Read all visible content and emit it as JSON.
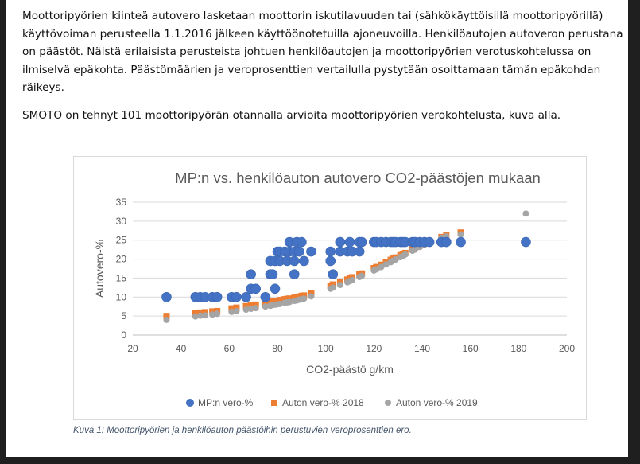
{
  "text": {
    "paragraph1": "Moottoripyörien kiinteä autovero lasketaan moottorin iskutilavuuden tai (sähkökäyttöisillä moottoripyörillä) käyttövoiman perusteella 1.1.2016 jälkeen käyttöönotetuilla ajoneuvoilla. Henkilöautojen autoveron perustana on päästöt. Näistä erilaisista perusteista johtuen henkilöautojen ja moottoripyörien verotuskohtelussa on ilmiselvä epäkohta. Päästömäärien ja veroprosenttien vertailulla pystytään osoittamaan tämän epäkohdan räikeys.",
    "paragraph2": "SMOTO on tehnyt 101 moottoripyörän otannalla arvioita moottoripyörien verokohtelusta, kuva alla.",
    "caption": "Kuva 1: Moottoripyörien ja henkilöauton päästöihin perustuvien veroprosenttien ero."
  },
  "chart_data": {
    "type": "scatter",
    "title": "MP:n vs. henkilöauton autovero CO2-päästöjen mukaan",
    "xlabel": "CO2-päästö g/km",
    "ylabel": "Autovero-%",
    "xlim": [
      20,
      200
    ],
    "ylim": [
      0,
      35
    ],
    "xticks": [
      20,
      40,
      60,
      80,
      100,
      120,
      140,
      160,
      180,
      200
    ],
    "yticks": [
      0,
      5,
      10,
      15,
      20,
      25,
      30,
      35
    ],
    "grid": "horizontal",
    "legend_position": "bottom",
    "series": [
      {
        "name": "MP:n vero-%",
        "marker": "circle",
        "color": "#4472c4",
        "points": [
          [
            34,
            10
          ],
          [
            46,
            10
          ],
          [
            48,
            10
          ],
          [
            50,
            10
          ],
          [
            53,
            10
          ],
          [
            55,
            10
          ],
          [
            61,
            10
          ],
          [
            63,
            10
          ],
          [
            67,
            10
          ],
          [
            69,
            12.2
          ],
          [
            69,
            16
          ],
          [
            71,
            12.2
          ],
          [
            75,
            10
          ],
          [
            77,
            16
          ],
          [
            77,
            19.5
          ],
          [
            78,
            16
          ],
          [
            79,
            12.2
          ],
          [
            79,
            19.5
          ],
          [
            80,
            22
          ],
          [
            81,
            19.5
          ],
          [
            81,
            22
          ],
          [
            83,
            22
          ],
          [
            84,
            19.5
          ],
          [
            85,
            22
          ],
          [
            85,
            24.5
          ],
          [
            87,
            16
          ],
          [
            87,
            19.5
          ],
          [
            87,
            22
          ],
          [
            88,
            24.5
          ],
          [
            89,
            22
          ],
          [
            90,
            24.5
          ],
          [
            91,
            19.5
          ],
          [
            94,
            22
          ],
          [
            102,
            19.5
          ],
          [
            102,
            22
          ],
          [
            103,
            16
          ],
          [
            106,
            22
          ],
          [
            106,
            24.5
          ],
          [
            109,
            22
          ],
          [
            110,
            24.5
          ],
          [
            111,
            22
          ],
          [
            114,
            24.5
          ],
          [
            114,
            22
          ],
          [
            115,
            24.5
          ],
          [
            120,
            24.5
          ],
          [
            121,
            24.5
          ],
          [
            123,
            24.5
          ],
          [
            125,
            24.5
          ],
          [
            127,
            24.5
          ],
          [
            128,
            24.5
          ],
          [
            129,
            24.5
          ],
          [
            131,
            24.5
          ],
          [
            132,
            24.5
          ],
          [
            133,
            24.5
          ],
          [
            136,
            24.5
          ],
          [
            137,
            24.5
          ],
          [
            139,
            24.5
          ],
          [
            141,
            24.5
          ],
          [
            143,
            24.5
          ],
          [
            148,
            24.5
          ],
          [
            150,
            24.5
          ],
          [
            156,
            24.5
          ],
          [
            183,
            24.5
          ]
        ]
      },
      {
        "name": "Auton vero-% 2018",
        "marker": "square",
        "color": "#ed7d31",
        "points": [
          [
            34,
            5
          ],
          [
            46,
            5.7
          ],
          [
            48,
            5.9
          ],
          [
            50,
            6
          ],
          [
            53,
            6.2
          ],
          [
            55,
            6.3
          ],
          [
            61,
            7
          ],
          [
            63,
            7.2
          ],
          [
            67,
            7.6
          ],
          [
            69,
            7.8
          ],
          [
            71,
            8
          ],
          [
            75,
            8.4
          ],
          [
            77,
            8.6
          ],
          [
            78,
            8.8
          ],
          [
            79,
            8.9
          ],
          [
            80,
            9
          ],
          [
            81,
            9.2
          ],
          [
            83,
            9.4
          ],
          [
            84,
            9.5
          ],
          [
            85,
            9.6
          ],
          [
            87,
            9.8
          ],
          [
            88,
            10
          ],
          [
            89,
            10.1
          ],
          [
            90,
            10.3
          ],
          [
            91,
            10.4
          ],
          [
            94,
            11
          ],
          [
            102,
            13
          ],
          [
            103,
            13.3
          ],
          [
            106,
            14
          ],
          [
            109,
            14.6
          ],
          [
            110,
            14.9
          ],
          [
            111,
            15.2
          ],
          [
            114,
            16
          ],
          [
            115,
            16.2
          ],
          [
            120,
            17.6
          ],
          [
            121,
            17.9
          ],
          [
            123,
            18.5
          ],
          [
            125,
            19.2
          ],
          [
            127,
            19.8
          ],
          [
            128,
            20.1
          ],
          [
            129,
            20.4
          ],
          [
            131,
            21
          ],
          [
            132,
            21.3
          ],
          [
            133,
            21.6
          ],
          [
            136,
            22.6
          ],
          [
            137,
            23
          ],
          [
            139,
            23.6
          ],
          [
            141,
            24.2
          ],
          [
            143,
            24.8
          ],
          [
            148,
            25.8
          ],
          [
            150,
            26.2
          ],
          [
            156,
            27
          ]
        ]
      },
      {
        "name": "Auton vero-% 2019",
        "marker": "circle",
        "color": "#a5a5a5",
        "points": [
          [
            34,
            4
          ],
          [
            46,
            4.9
          ],
          [
            48,
            5.1
          ],
          [
            50,
            5.2
          ],
          [
            53,
            5.4
          ],
          [
            55,
            5.6
          ],
          [
            61,
            6.1
          ],
          [
            63,
            6.3
          ],
          [
            67,
            6.7
          ],
          [
            69,
            6.9
          ],
          [
            71,
            7.1
          ],
          [
            75,
            7.5
          ],
          [
            77,
            7.7
          ],
          [
            78,
            7.9
          ],
          [
            79,
            8
          ],
          [
            80,
            8.1
          ],
          [
            81,
            8.2
          ],
          [
            83,
            8.5
          ],
          [
            84,
            8.6
          ],
          [
            85,
            8.7
          ],
          [
            87,
            9
          ],
          [
            88,
            9.1
          ],
          [
            89,
            9.3
          ],
          [
            90,
            9.4
          ],
          [
            91,
            9.6
          ],
          [
            94,
            10.2
          ],
          [
            102,
            12.2
          ],
          [
            103,
            12.5
          ],
          [
            106,
            13.2
          ],
          [
            109,
            13.9
          ],
          [
            110,
            14.2
          ],
          [
            111,
            14.5
          ],
          [
            114,
            15.3
          ],
          [
            115,
            15.6
          ],
          [
            120,
            17
          ],
          [
            121,
            17.3
          ],
          [
            123,
            17.9
          ],
          [
            125,
            18.6
          ],
          [
            127,
            19.2
          ],
          [
            128,
            19.6
          ],
          [
            129,
            19.9
          ],
          [
            131,
            20.5
          ],
          [
            132,
            20.8
          ],
          [
            133,
            21.2
          ],
          [
            136,
            22.2
          ],
          [
            137,
            22.5
          ],
          [
            139,
            23.2
          ],
          [
            141,
            23.8
          ],
          [
            143,
            24.4
          ],
          [
            148,
            25.6
          ],
          [
            150,
            26
          ],
          [
            156,
            26.5
          ],
          [
            183,
            32
          ]
        ]
      }
    ]
  }
}
